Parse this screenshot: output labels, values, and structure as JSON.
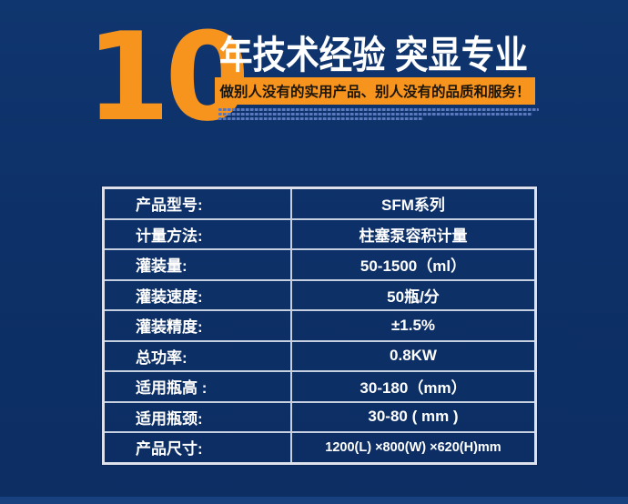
{
  "colors": {
    "background": "#0d3068",
    "accent_orange": "#f7941d",
    "banner_text": "#1b150c",
    "table_border": "#dde1ec",
    "table_text": "#ffffff"
  },
  "hero": {
    "big_number": "10",
    "title": "年技术经验 突显专业",
    "banner": "做别人没有的实用产品、别人没有的品质和服务！"
  },
  "spec_table": {
    "rows": [
      {
        "label": "产品型号:",
        "value": "SFM系列"
      },
      {
        "label": "计量方法:",
        "value": "柱塞泵容积计量"
      },
      {
        "label": "灌装量:",
        "value": "50-1500（ml）"
      },
      {
        "label": "灌装速度:",
        "value": "50瓶/分"
      },
      {
        "label": "灌装精度:",
        "value": "±1.5%"
      },
      {
        "label": "总功率:",
        "value": "0.8KW"
      },
      {
        "label": "适用瓶高 :",
        "value": "30-180（mm）"
      },
      {
        "label": "适用瓶颈:",
        "value": "30-80 ( mm )"
      },
      {
        "label": "产品尺寸:",
        "value": "1200(L) ×800(W) ×620(H)mm"
      }
    ]
  }
}
